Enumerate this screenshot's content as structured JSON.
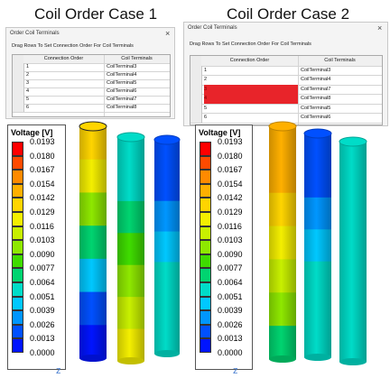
{
  "cases": [
    {
      "title": "Coil Order Case 1",
      "dialog": {
        "title": "Order Coil Terminals",
        "close_label": "×",
        "instruction": "Drag Rows To Set Connection Order For Coil Terminals",
        "headers": [
          "Connection Order",
          "Coil Terminals"
        ],
        "rows": [
          {
            "order": "1",
            "terminal": "CoilTerminal3",
            "highlight": false
          },
          {
            "order": "2",
            "terminal": "CoilTerminal4",
            "highlight": false
          },
          {
            "order": "3",
            "terminal": "CoilTerminal5",
            "highlight": false
          },
          {
            "order": "4",
            "terminal": "CoilTerminal6",
            "highlight": false
          },
          {
            "order": "5",
            "terminal": "CoilTerminal7",
            "highlight": false
          },
          {
            "order": "6",
            "terminal": "CoilTerminal8",
            "highlight": false
          }
        ]
      },
      "coils": [
        {
          "levels": [
            0.0142,
            0.0129,
            0.0103,
            0.0077,
            0.0051,
            0.0026,
            0.0013
          ]
        },
        {
          "levels": [
            0.0064,
            0.0064,
            0.0077,
            0.009,
            0.0103,
            0.0116,
            0.0129
          ]
        },
        {
          "levels": [
            0.0026,
            0.0026,
            0.0039,
            0.0051,
            0.0064,
            0.0064,
            0.0064
          ]
        }
      ]
    },
    {
      "title": "Coil Order Case 2",
      "dialog": {
        "title": "Order Coil Terminals",
        "close_label": "×",
        "instruction": "Drag Rows To Set Connection Order For Coil Terminals",
        "headers": [
          "Connection Order",
          "Coil Terminals"
        ],
        "rows": [
          {
            "order": "1",
            "terminal": "CoilTerminal3",
            "highlight": false
          },
          {
            "order": "2",
            "terminal": "CoilTerminal4",
            "highlight": false
          },
          {
            "order": "3",
            "terminal": "CoilTerminal7",
            "highlight": true
          },
          {
            "order": "4",
            "terminal": "CoilTerminal8",
            "highlight": true
          },
          {
            "order": "5",
            "terminal": "CoilTerminal5",
            "highlight": false
          },
          {
            "order": "6",
            "terminal": "CoilTerminal6",
            "highlight": false
          }
        ]
      },
      "coils": [
        {
          "levels": [
            0.0154,
            0.0154,
            0.0142,
            0.0129,
            0.0116,
            0.0103,
            0.0077
          ]
        },
        {
          "levels": [
            0.0026,
            0.0026,
            0.0039,
            0.0051,
            0.0064,
            0.0064,
            0.0064
          ]
        },
        {
          "levels": [
            0.0064,
            0.0064,
            0.0064,
            0.0064,
            0.0064,
            0.0064,
            0.0064
          ]
        }
      ]
    }
  ],
  "legend": {
    "title": "Voltage [V]",
    "values": [
      "0.0193",
      "0.0180",
      "0.0167",
      "0.0154",
      "0.0142",
      "0.0129",
      "0.0116",
      "0.0103",
      "0.0090",
      "0.0077",
      "0.0064",
      "0.0051",
      "0.0039",
      "0.0026",
      "0.0013",
      "0.0000"
    ],
    "colors": [
      "#ff0000",
      "#ff4a00",
      "#ff8a00",
      "#ffb000",
      "#ffd500",
      "#f4ef00",
      "#c8f000",
      "#8ee800",
      "#3fdc00",
      "#00d470",
      "#00dcc8",
      "#00c8ff",
      "#0096ff",
      "#0050ff",
      "#0014ff",
      "#0000e0"
    ]
  },
  "axis_marker": "z"
}
